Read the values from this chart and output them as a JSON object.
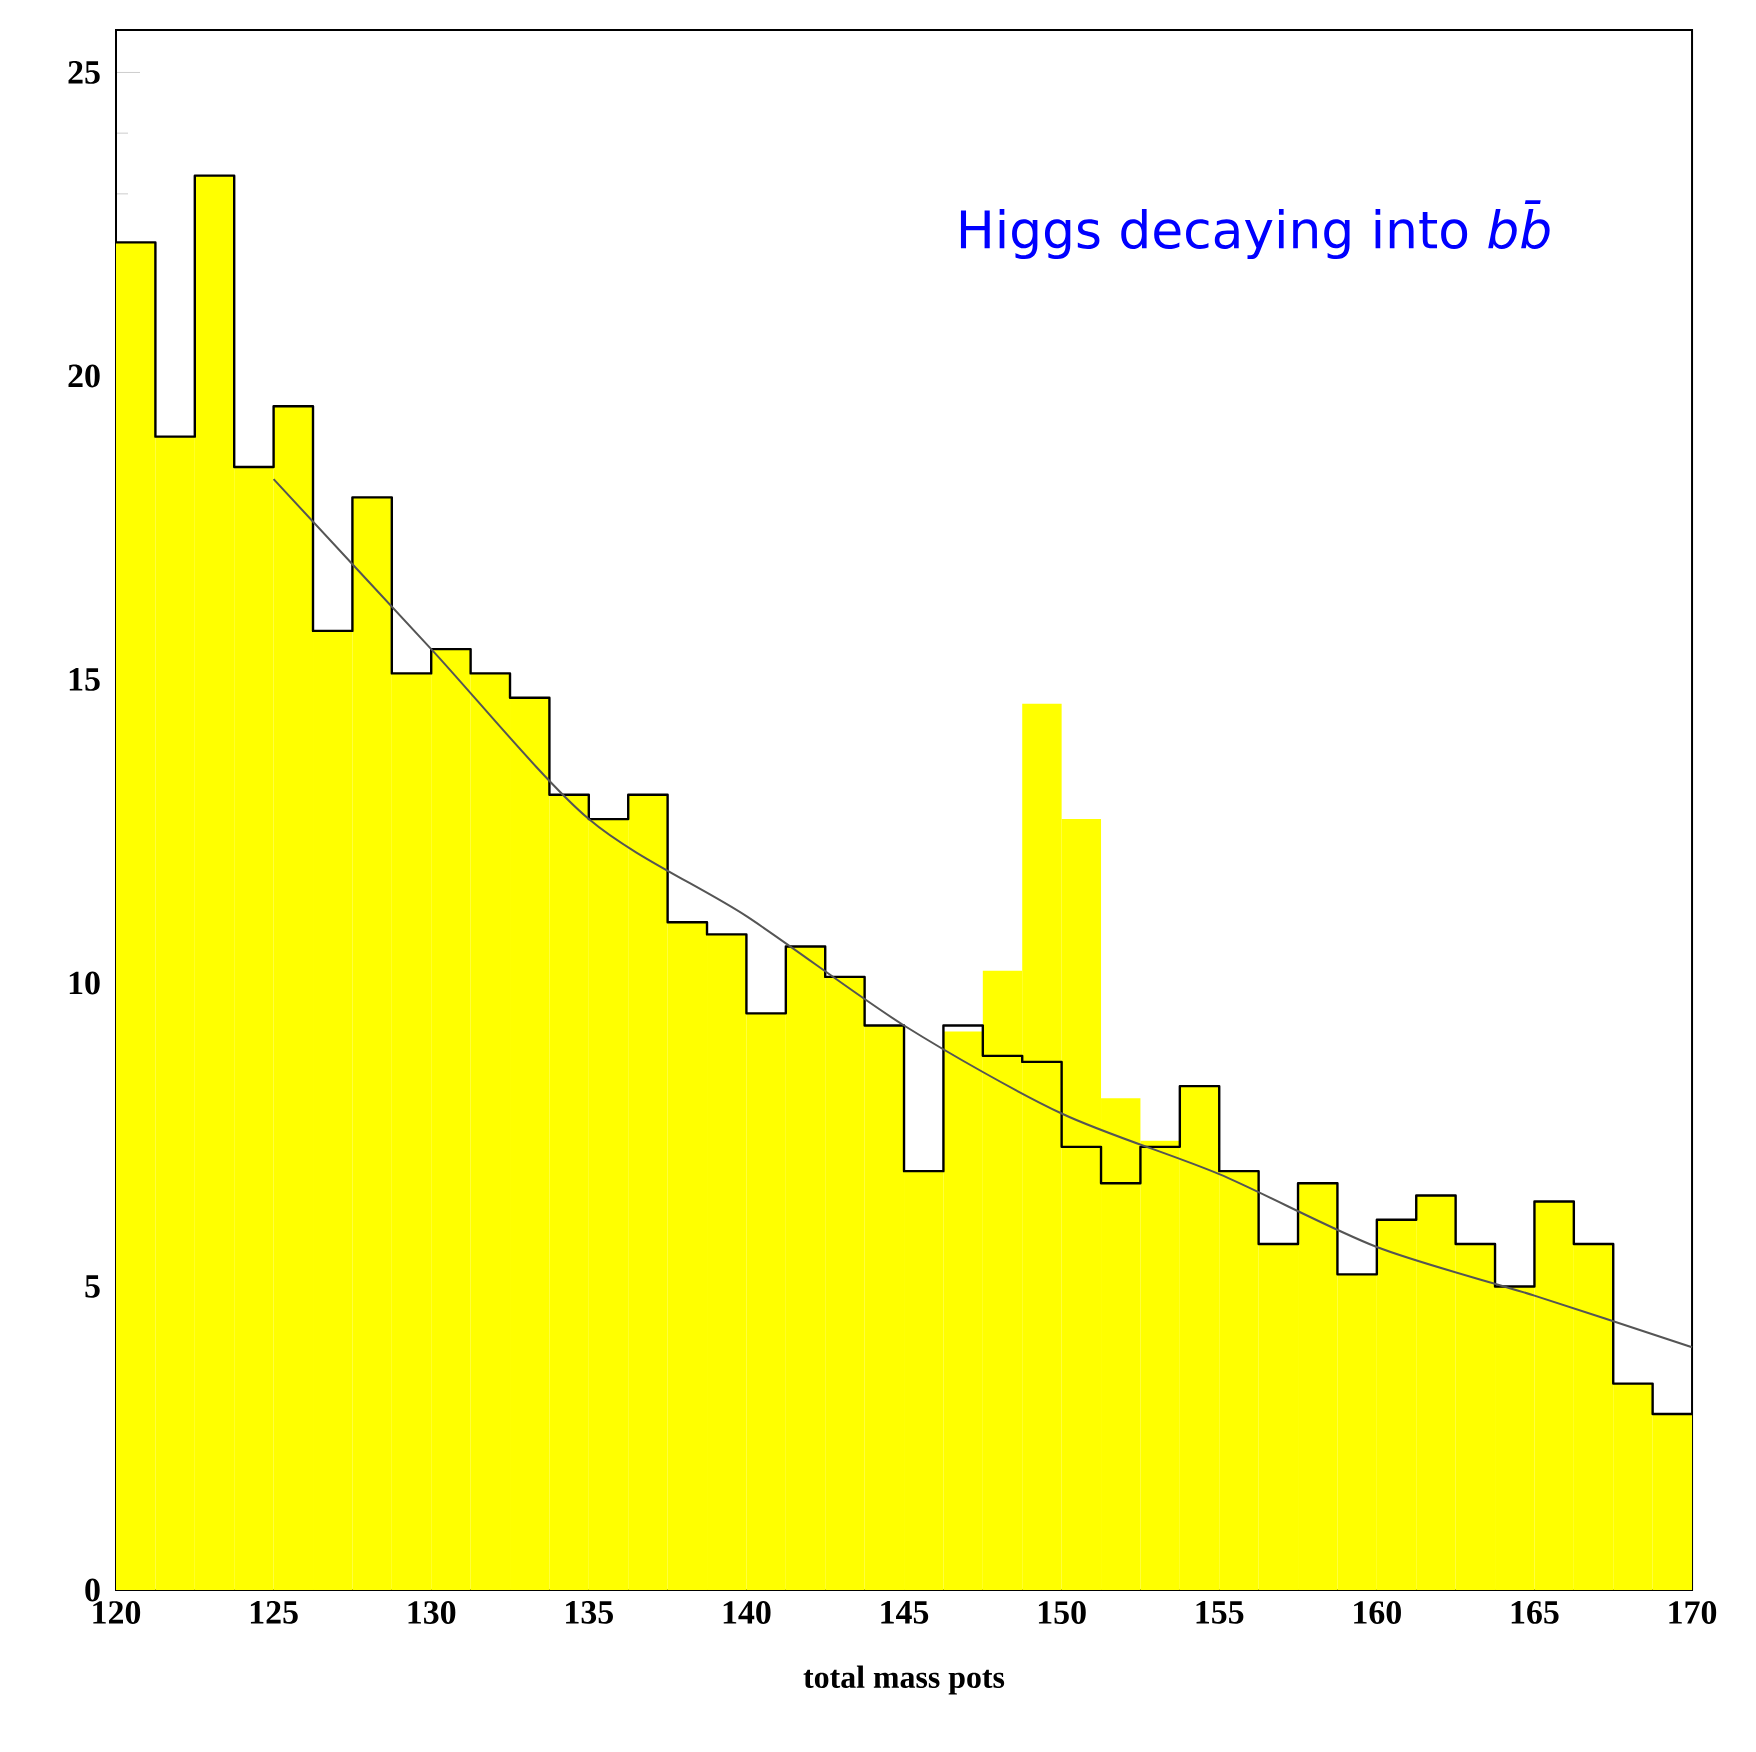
{
  "chart_data": {
    "type": "histogram",
    "title": "Higgs decaying into *bb̄*",
    "xlabel": "total mass pots",
    "bins": [
      120,
      121.25,
      122.5,
      123.75,
      125,
      126.25,
      127.5,
      128.75,
      130,
      131.25,
      132.5,
      133.75,
      135,
      136.25,
      137.5,
      138.75,
      140,
      141.25,
      142.5,
      143.75,
      145,
      146.25,
      147.5,
      148.75,
      150,
      151.25,
      152.5,
      153.75,
      155,
      156.25,
      157.5,
      158.75,
      160,
      161.25,
      162.5,
      163.75,
      165,
      166.25,
      167.5,
      168.75,
      170
    ],
    "series": [
      {
        "color": "#ffff00",
        "values": [
          22.2,
          19.0,
          23.3,
          18.5,
          19.5,
          15.8,
          18.0,
          15.1,
          15.5,
          15.1,
          14.7,
          13.1,
          12.7,
          13.1,
          11.0,
          10.8,
          9.5,
          10.6,
          10.1,
          9.3,
          6.9,
          9.2,
          10.2,
          14.6,
          12.7,
          8.1,
          7.4,
          8.3,
          6.9,
          5.7,
          6.7,
          5.2,
          6.1,
          6.5,
          5.7,
          5.0,
          6.4,
          5.7,
          3.4,
          2.9
        ]
      },
      {
        "type": "step",
        "color": "#000000",
        "x": [
          120,
          121.25,
          122.5,
          123.75,
          125,
          126.25,
          127.5,
          128.75,
          130,
          131.25,
          132.5,
          133.75,
          135,
          136.25,
          137.5,
          138.75,
          140,
          141.25,
          142.5,
          143.75,
          145,
          146.25,
          147.5,
          148.75,
          150,
          151.25,
          152.5,
          153.75,
          155,
          156.25,
          157.5,
          158.75,
          160,
          161.25,
          162.5,
          163.75,
          165,
          166.25,
          167.5,
          168.75,
          170
        ],
        "values": [
          22.2,
          19.0,
          23.3,
          18.5,
          19.5,
          15.8,
          18.0,
          15.1,
          15.5,
          15.1,
          14.7,
          13.1,
          12.7,
          13.1,
          11.0,
          10.8,
          9.5,
          10.6,
          10.1,
          9.3,
          6.9,
          9.3,
          8.8,
          8.7,
          7.3,
          6.7,
          7.3,
          8.3,
          6.9,
          5.7,
          6.7,
          5.2,
          6.1,
          6.5,
          5.7,
          5.0,
          6.4,
          5.7,
          3.4,
          2.9,
          2.9
        ]
      },
      {
        "type": "line",
        "color": "#555555",
        "x": [
          125,
          130,
          135,
          140,
          145,
          150,
          155,
          160,
          165,
          170
        ],
        "values": [
          18.3,
          15.5,
          12.7,
          11.1,
          9.3,
          7.85,
          6.85,
          5.65,
          4.85,
          4.0
        ]
      }
    ],
    "xlim": [
      120,
      170
    ],
    "ylim": [
      0,
      25.7
    ],
    "xticks": [
      120,
      125,
      130,
      135,
      140,
      145,
      150,
      155,
      160,
      165,
      170
    ],
    "yticks": [
      0,
      5,
      10,
      15,
      20,
      25
    ]
  }
}
